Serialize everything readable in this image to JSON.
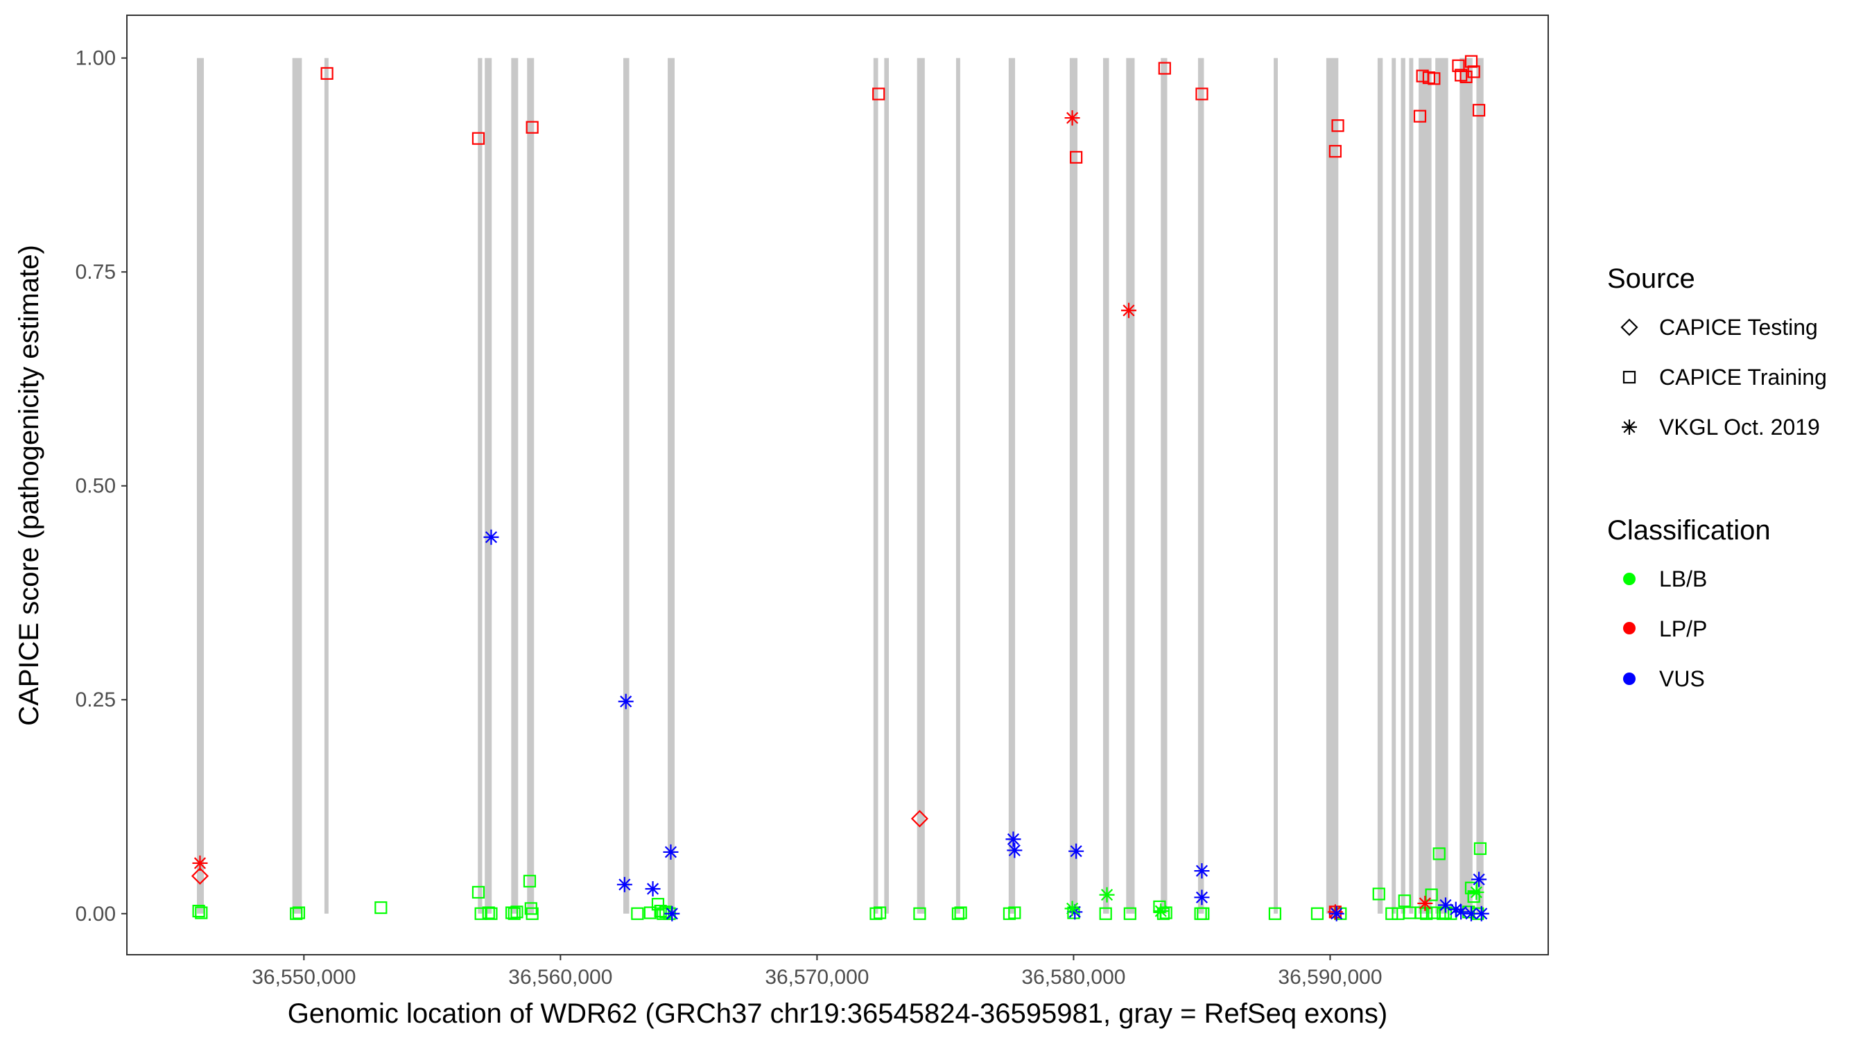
{
  "chart_data": {
    "type": "scatter",
    "title": "",
    "xlabel": "Genomic location of WDR62 (GRCh37 chr19:36545824-36595981, gray = RefSeq exons)",
    "ylabel": "CAPICE score (pathogenicity estimate)",
    "xlim": [
      36543100,
      36598500
    ],
    "ylim": [
      -0.048,
      1.05
    ],
    "x_ticks": [
      36550000,
      36560000,
      36570000,
      36580000,
      36590000
    ],
    "x_tick_labels": [
      "36,550,000",
      "36,560,000",
      "36,570,000",
      "36,580,000",
      "36,590,000"
    ],
    "y_ticks": [
      0.0,
      0.25,
      0.5,
      0.75,
      1.0
    ],
    "y_tick_labels": [
      "0.00",
      "0.25",
      "0.50",
      "0.75",
      "1.00"
    ],
    "grid": false,
    "exons": [
      [
        36545830,
        36546100
      ],
      [
        36549550,
        36549920
      ],
      [
        36550800,
        36550960
      ],
      [
        36556780,
        36556950
      ],
      [
        36557050,
        36557320
      ],
      [
        36558080,
        36558350
      ],
      [
        36558700,
        36558970
      ],
      [
        36562450,
        36562680
      ],
      [
        36564180,
        36564450
      ],
      [
        36572200,
        36572380
      ],
      [
        36572620,
        36572800
      ],
      [
        36573900,
        36574200
      ],
      [
        36575420,
        36575580
      ],
      [
        36577470,
        36577720
      ],
      [
        36579850,
        36580150
      ],
      [
        36581150,
        36581380
      ],
      [
        36582050,
        36582380
      ],
      [
        36583400,
        36583650
      ],
      [
        36584850,
        36585080
      ],
      [
        36587800,
        36587960
      ],
      [
        36589850,
        36590320
      ],
      [
        36591850,
        36592050
      ],
      [
        36592400,
        36592560
      ],
      [
        36592760,
        36592930
      ],
      [
        36593080,
        36593240
      ],
      [
        36593450,
        36593950
      ],
      [
        36594100,
        36594600
      ],
      [
        36595050,
        36595550
      ],
      [
        36595700,
        36595980
      ]
    ],
    "legend": {
      "placement": "right",
      "source_title": "Source",
      "source_items": [
        {
          "label": "CAPICE Testing",
          "shape": "diamond"
        },
        {
          "label": "CAPICE Training",
          "shape": "square"
        },
        {
          "label": "VKGL Oct. 2019",
          "shape": "star"
        }
      ],
      "class_title": "Classification",
      "class_items": [
        {
          "label": "LB/B",
          "color": "#00ff00"
        },
        {
          "label": "LP/P",
          "color": "#ff0000"
        },
        {
          "label": "VUS",
          "color": "#0000ff"
        }
      ]
    },
    "colors": {
      "LB/B": "#00ff00",
      "LP/P": "#ff0000",
      "VUS": "#0000ff",
      "exon": "#c8c8c8"
    },
    "series": [
      {
        "name": "CAPICE Training / LP/P",
        "shape": "square",
        "cls": "LP/P",
        "points": [
          [
            36550900,
            0.982
          ],
          [
            36556800,
            0.906
          ],
          [
            36558900,
            0.919
          ],
          [
            36572400,
            0.958
          ],
          [
            36580100,
            0.884
          ],
          [
            36583550,
            0.988
          ],
          [
            36585000,
            0.958
          ],
          [
            36590200,
            0.891
          ],
          [
            36590300,
            0.921
          ],
          [
            36593500,
            0.932
          ],
          [
            36593600,
            0.979
          ],
          [
            36593850,
            0.977
          ],
          [
            36594050,
            0.976
          ],
          [
            36595000,
            0.991
          ],
          [
            36595100,
            0.98
          ],
          [
            36595300,
            0.978
          ],
          [
            36595500,
            0.996
          ],
          [
            36595600,
            0.984
          ],
          [
            36595800,
            0.939
          ],
          [
            36590200,
            0.002
          ]
        ]
      },
      {
        "name": "CAPICE Training / LB/B",
        "shape": "square",
        "cls": "LB/B",
        "points": [
          [
            36545900,
            0.003
          ],
          [
            36546000,
            0.001
          ],
          [
            36549700,
            0.0
          ],
          [
            36549800,
            0.001
          ],
          [
            36553000,
            0.007
          ],
          [
            36556800,
            0.025
          ],
          [
            36556900,
            0.0
          ],
          [
            36557200,
            0.001
          ],
          [
            36557300,
            0.0
          ],
          [
            36558100,
            0.001
          ],
          [
            36558200,
            0.0
          ],
          [
            36558300,
            0.002
          ],
          [
            36558800,
            0.038
          ],
          [
            36558850,
            0.006
          ],
          [
            36558900,
            0.0
          ],
          [
            36563000,
            0.0
          ],
          [
            36563500,
            0.001
          ],
          [
            36563800,
            0.011
          ],
          [
            36563900,
            0.003
          ],
          [
            36564000,
            0.0
          ],
          [
            36564100,
            0.002
          ],
          [
            36564250,
            0.0
          ],
          [
            36572300,
            0.0
          ],
          [
            36572450,
            0.001
          ],
          [
            36574000,
            0.0
          ],
          [
            36575500,
            0.0
          ],
          [
            36575600,
            0.001
          ],
          [
            36577500,
            0.0
          ],
          [
            36577700,
            0.001
          ],
          [
            36580000,
            0.001
          ],
          [
            36581250,
            0.0
          ],
          [
            36582200,
            0.0
          ],
          [
            36583350,
            0.008
          ],
          [
            36583500,
            0.0
          ],
          [
            36583600,
            0.001
          ],
          [
            36584950,
            0.0
          ],
          [
            36585050,
            0.0
          ],
          [
            36587850,
            0.0
          ],
          [
            36589500,
            0.0
          ],
          [
            36590400,
            0.0
          ],
          [
            36591900,
            0.023
          ],
          [
            36592400,
            0.0
          ],
          [
            36592650,
            0.0
          ],
          [
            36592900,
            0.015
          ],
          [
            36593100,
            0.001
          ],
          [
            36593550,
            0.001
          ],
          [
            36593750,
            0.0
          ],
          [
            36593950,
            0.022
          ],
          [
            36594050,
            0.001
          ],
          [
            36594250,
            0.07
          ],
          [
            36594400,
            0.0
          ],
          [
            36594500,
            0.001
          ],
          [
            36594700,
            0.0
          ],
          [
            36595400,
            0.002
          ],
          [
            36595500,
            0.03
          ],
          [
            36595600,
            0.02
          ],
          [
            36595750,
            0.0
          ],
          [
            36595850,
            0.076
          ]
        ]
      },
      {
        "name": "CAPICE Testing / LP/P",
        "shape": "diamond",
        "cls": "LP/P",
        "points": [
          [
            36545950,
            0.044
          ],
          [
            36574000,
            0.111
          ]
        ]
      },
      {
        "name": "VKGL Oct. 2019 / LP/P",
        "shape": "star",
        "cls": "LP/P",
        "points": [
          [
            36545950,
            0.059
          ],
          [
            36579950,
            0.93
          ],
          [
            36582150,
            0.705
          ],
          [
            36590200,
            0.002
          ],
          [
            36593700,
            0.012
          ]
        ]
      },
      {
        "name": "VKGL Oct. 2019 / VUS",
        "shape": "star",
        "cls": "VUS",
        "points": [
          [
            36557300,
            0.44
          ],
          [
            36562550,
            0.248
          ],
          [
            36562500,
            0.034
          ],
          [
            36563600,
            0.029
          ],
          [
            36564300,
            0.072
          ],
          [
            36564350,
            0.0
          ],
          [
            36577650,
            0.087
          ],
          [
            36577700,
            0.074
          ],
          [
            36580100,
            0.073
          ],
          [
            36580050,
            0.002
          ],
          [
            36585000,
            0.05
          ],
          [
            36585000,
            0.019
          ],
          [
            36590250,
            0.0
          ],
          [
            36594500,
            0.01
          ],
          [
            36594900,
            0.005
          ],
          [
            36595100,
            0.002
          ],
          [
            36595500,
            0.0
          ],
          [
            36595800,
            0.04
          ],
          [
            36595900,
            0.0
          ]
        ]
      },
      {
        "name": "VKGL Oct. 2019 / LB/B",
        "shape": "star",
        "cls": "LB/B",
        "points": [
          [
            36581300,
            0.022
          ],
          [
            36579950,
            0.006
          ],
          [
            36583400,
            0.003
          ],
          [
            36595700,
            0.025
          ]
        ]
      }
    ]
  }
}
